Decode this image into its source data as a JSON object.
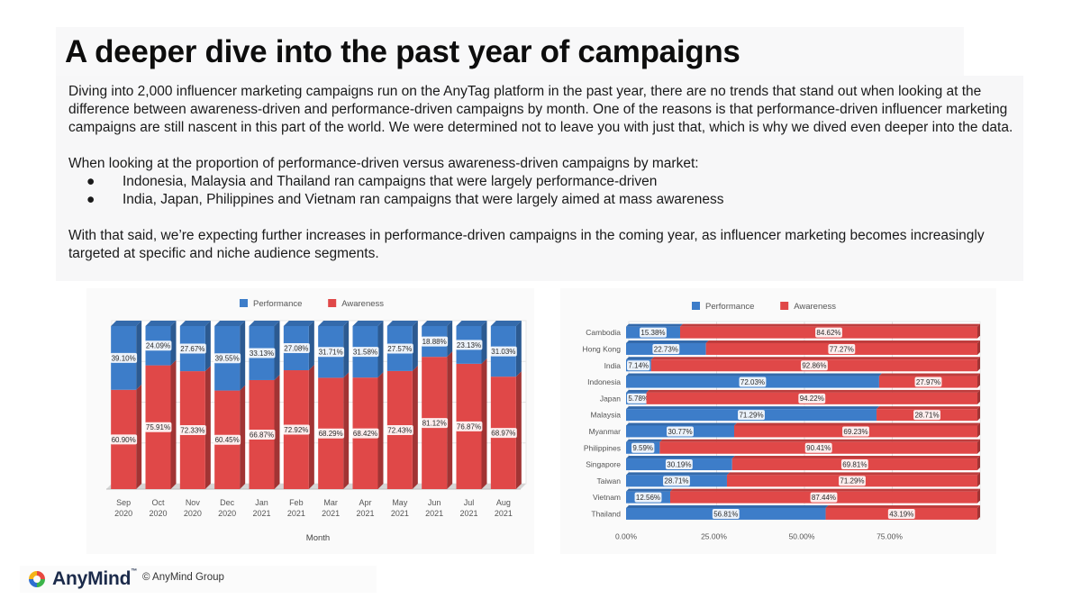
{
  "title": "A deeper dive into the past year of campaigns",
  "body": {
    "para1": "Diving into 2,000 influencer marketing campaigns run on the AnyTag platform in the past year, there are no trends that stand out when looking at the difference between awareness-driven and performance-driven campaigns by month. One of the reasons is that performance-driven influencer marketing campaigns are still nascent in this part of the world. We were determined not to leave you with just that, which is why we dived even deeper into the data.",
    "para2": "When looking at the proportion of performance-driven versus awareness-driven campaigns by market:",
    "bullet_glyph": "●",
    "bullets": [
      "Indonesia, Malaysia and Thailand ran campaigns that were largely performance-driven",
      "India, Japan, Philippines and Vietnam ran campaigns that were largely aimed at mass awareness"
    ],
    "para3": "With that said, we’re expecting further increases in performance-driven campaigns in the coming year, as influencer marketing becomes increasingly targeted at specific and niche audience segments."
  },
  "footer": {
    "logo_text": "AnyMind",
    "logo_tm": "™",
    "copyright": "© AnyMind Group"
  },
  "chart_data": [
    {
      "type": "bar",
      "stacked": true,
      "orientation": "vertical",
      "percent_stacked": true,
      "title": "",
      "xlabel": "Month",
      "ylabel": "",
      "ylim": [
        0,
        100
      ],
      "grid": true,
      "legend": "top",
      "categories": [
        [
          "Sep",
          "2020"
        ],
        [
          "Oct",
          "2020"
        ],
        [
          "Nov",
          "2020"
        ],
        [
          "Dec",
          "2020"
        ],
        [
          "Jan",
          "2021"
        ],
        [
          "Feb",
          "2021"
        ],
        [
          "Mar",
          "2021"
        ],
        [
          "Apr",
          "2021"
        ],
        [
          "May",
          "2021"
        ],
        [
          "Jun",
          "2021"
        ],
        [
          "Jul",
          "2021"
        ],
        [
          "Aug",
          "2021"
        ]
      ],
      "series": [
        {
          "name": "Performance",
          "color": "#3d7dc9",
          "values": [
            39.1,
            24.09,
            27.67,
            39.55,
            33.13,
            27.08,
            31.71,
            31.58,
            27.57,
            18.88,
            23.13,
            31.03
          ],
          "labels": [
            "39.10%",
            "24.09%",
            "27.67%",
            "39.55%",
            "33.13%",
            "27.08%",
            "31.71%",
            "31.58%",
            "27.57%",
            "18.88%",
            "23.13%",
            "31.03%"
          ]
        },
        {
          "name": "Awareness",
          "color": "#e04848",
          "values": [
            60.9,
            75.91,
            72.33,
            60.45,
            66.87,
            72.92,
            68.29,
            68.42,
            72.43,
            81.12,
            76.87,
            68.97
          ],
          "labels": [
            "60.90%",
            "75.91%",
            "72.33%",
            "60.45%",
            "66.87%",
            "72.92%",
            "68.29%",
            "68.42%",
            "72.43%",
            "81.12%",
            "76.87%",
            "68.97%"
          ]
        }
      ]
    },
    {
      "type": "bar",
      "stacked": true,
      "orientation": "horizontal",
      "percent_stacked": true,
      "title": "",
      "xlabel": "",
      "ylabel": "",
      "xlim": [
        0,
        100
      ],
      "grid": true,
      "legend": "top",
      "x_ticks": [
        0,
        25,
        50,
        75
      ],
      "x_tick_labels": [
        "0.00%",
        "25.00%",
        "50.00%",
        "75.00%"
      ],
      "categories": [
        "Cambodia",
        "Hong Kong",
        "India",
        "Indonesia",
        "Japan",
        "Malaysia",
        "Myanmar",
        "Philippines",
        "Singapore",
        "Taiwan",
        "Vietnam",
        "Thailand"
      ],
      "series": [
        {
          "name": "Performance",
          "color": "#3d7dc9",
          "values": [
            15.38,
            22.73,
            7.14,
            72.03,
            5.78,
            71.29,
            30.77,
            9.59,
            30.19,
            28.71,
            12.56,
            56.81
          ],
          "labels": [
            "15.38%",
            "22.73%",
            "7.14%",
            "72.03%",
            "5.78%",
            "71.29%",
            "30.77%",
            "9.59%",
            "30.19%",
            "28.71%",
            "12.56%",
            "56.81%"
          ]
        },
        {
          "name": "Awareness",
          "color": "#e04848",
          "values": [
            84.62,
            77.27,
            92.86,
            27.97,
            94.22,
            28.71,
            69.23,
            90.41,
            69.81,
            71.29,
            87.44,
            43.19
          ],
          "labels": [
            "84.62%",
            "77.27%",
            "92.86%",
            "27.97%",
            "94.22%",
            "28.71%",
            "69.23%",
            "90.41%",
            "69.81%",
            "71.29%",
            "87.44%",
            "43.19%"
          ]
        }
      ]
    }
  ]
}
